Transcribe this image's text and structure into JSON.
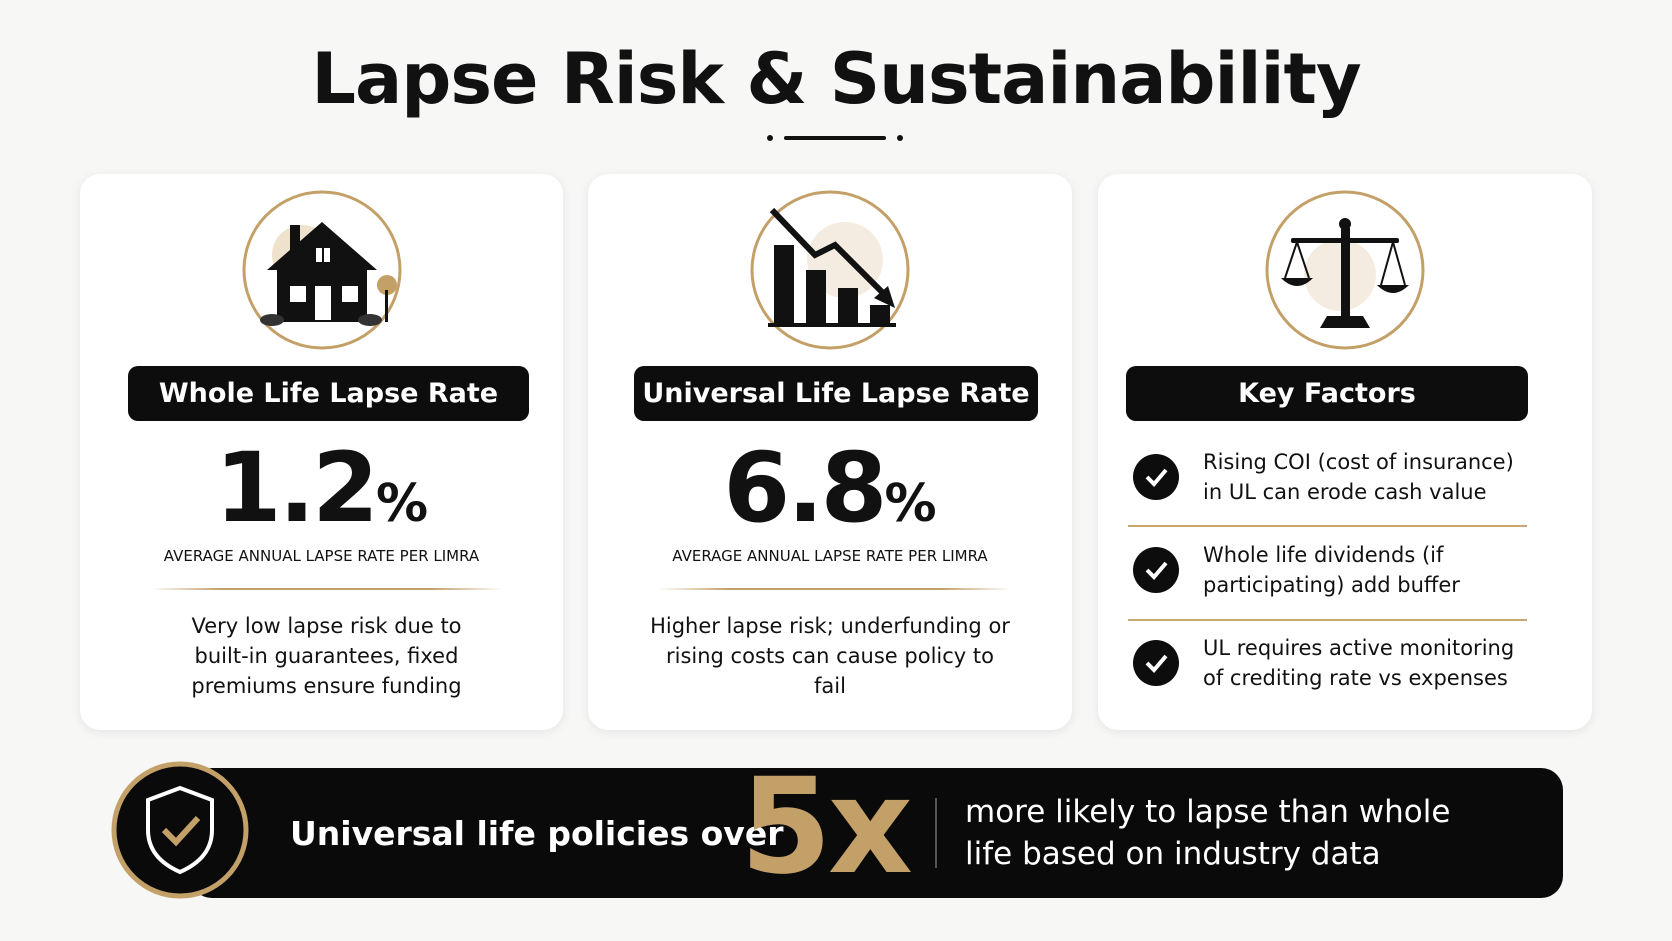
{
  "title": "Lapse Risk & Sustainability",
  "cards": [
    {
      "label": "Whole Life Lapse Rate",
      "value": "1.2",
      "unit": "%",
      "caption": "AVERAGE ANNUAL LAPSE RATE PER LIMRA",
      "description": "Very low lapse risk due to built-in guarantees, fixed premiums ensure funding"
    },
    {
      "label": "Universal Life Lapse Rate",
      "value": "6.8",
      "unit": "%",
      "caption": "AVERAGE ANNUAL LAPSE RATE PER LIMRA",
      "description": "Higher lapse risk; underfunding or rising costs can cause policy to fail"
    }
  ],
  "factors": {
    "label": "Key Factors",
    "items": [
      "Rising COI (cost of insurance) in UL can erode cash value",
      "Whole life dividends (if participating) add buffer",
      "UL requires active monitoring of crediting rate vs expenses"
    ]
  },
  "banner": {
    "lead": "Universal life policies over",
    "highlight": "5x",
    "text": "more likely to lapse than whole life based on industry data"
  }
}
